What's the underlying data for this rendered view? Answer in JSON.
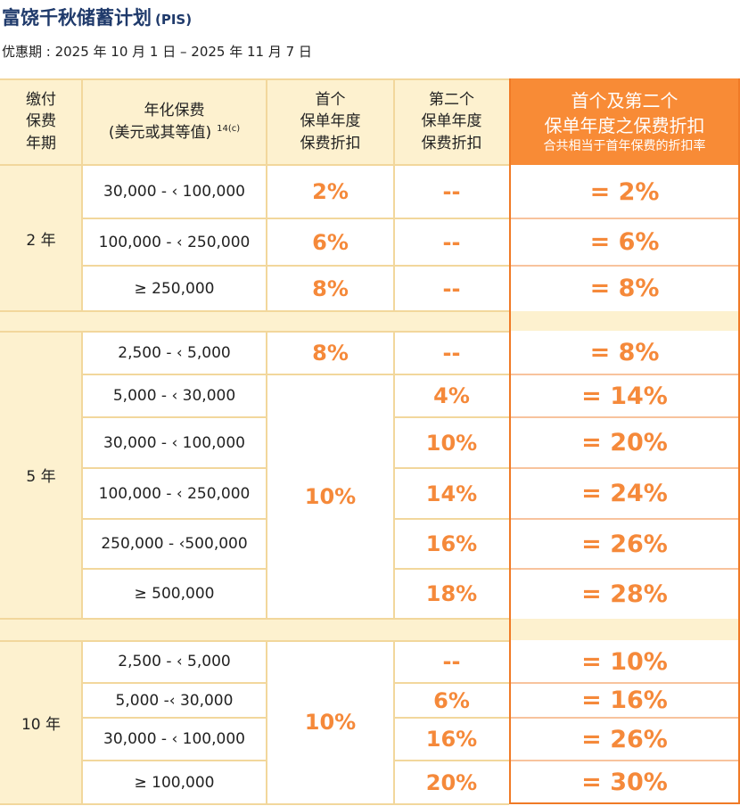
{
  "title": "富饶千秋储蓄计划",
  "title_tag": "(PIS)",
  "period": "优惠期 : 2025 年 10 月 1 日 – 2025 年 11 月 7 日",
  "headers": {
    "term": [
      "缴付",
      "保费",
      "年期"
    ],
    "premium": [
      "年化保费",
      "(美元或其等值)"
    ],
    "premium_note": "14(c)",
    "first": [
      "首个",
      "保单年度",
      "保费折扣"
    ],
    "second": [
      "第二个",
      "保单年度",
      "保费折扣"
    ],
    "combined": [
      "首个及第二个",
      "保单年度之保费折扣"
    ],
    "combined_sub": "合共相当于首年保费的折扣率"
  },
  "groups": [
    {
      "term": "2 年",
      "rows": [
        {
          "range": "30,000 - ‹ 100,000",
          "first": "2%",
          "second": "--",
          "total": "= 2%"
        },
        {
          "range": "100,000 - ‹ 250,000",
          "first": "6%",
          "second": "--",
          "total": "= 6%"
        },
        {
          "range": "≥ 250,000",
          "first": "8%",
          "second": "--",
          "total": "= 8%"
        }
      ]
    },
    {
      "term": "5 年",
      "first_merged": "10%",
      "rows": [
        {
          "range": "2,500 - ‹ 5,000",
          "first": "8%",
          "second": "--",
          "total": "= 8%"
        },
        {
          "range": "5,000 - ‹ 30,000",
          "second": "4%",
          "total": "= 14%"
        },
        {
          "range": "30,000 - ‹ 100,000",
          "second": "10%",
          "total": "= 20%"
        },
        {
          "range": "100,000 - ‹ 250,000",
          "second": "14%",
          "total": "= 24%"
        },
        {
          "range": "250,000 - ‹500,000",
          "second": "16%",
          "total": "= 26%"
        },
        {
          "range": "≥ 500,000",
          "second": "18%",
          "total": "= 28%"
        }
      ]
    },
    {
      "term": "10 年",
      "first_merged": "10%",
      "rows": [
        {
          "range": "2,500 - ‹ 5,000",
          "second": "--",
          "total": "= 10%"
        },
        {
          "range": "5,000 -‹ 30,000",
          "second": "6%",
          "total": "= 16%"
        },
        {
          "range": "30,000 - ‹ 100,000",
          "second": "16%",
          "total": "= 26%"
        },
        {
          "range": "≥ 100,000",
          "second": "20%",
          "total": "= 30%"
        }
      ]
    }
  ]
}
